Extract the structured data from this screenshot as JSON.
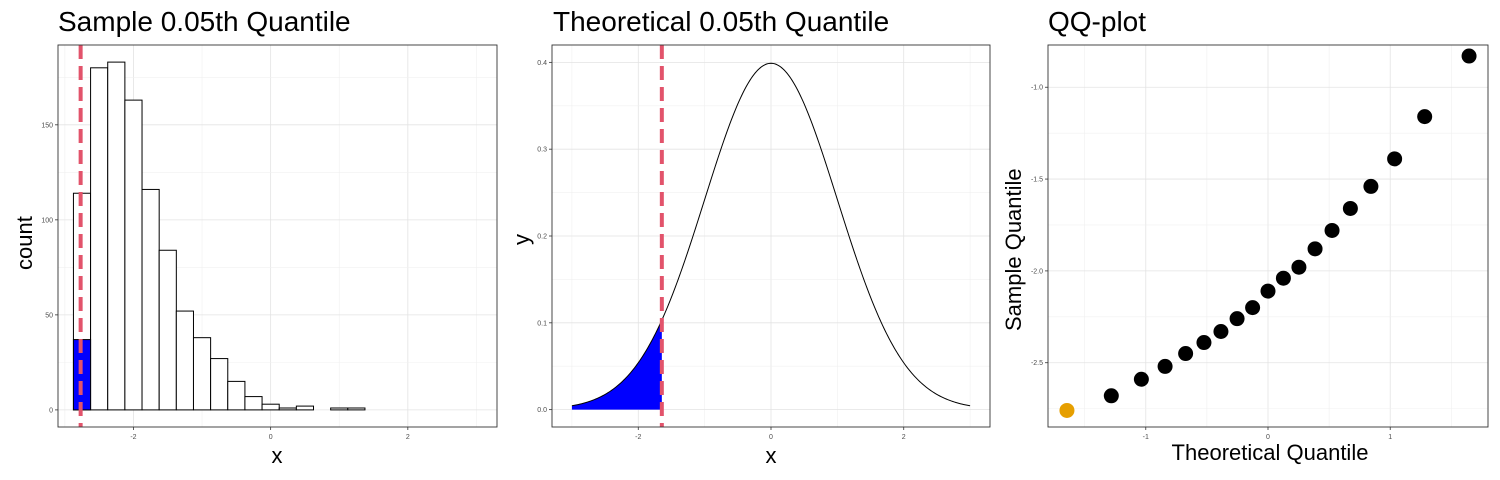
{
  "chart_data": [
    {
      "type": "bar",
      "title": "Sample 0.05th Quantile",
      "xlabel": "x",
      "ylabel": "count",
      "xlim": [
        -3.1,
        3.3
      ],
      "ylim": [
        -9,
        192
      ],
      "xticks": [
        -2,
        0,
        2
      ],
      "yticks": [
        0,
        50,
        100,
        150
      ],
      "bin_width": 0.25,
      "bins_start": [
        -2.875,
        -2.625,
        -2.375,
        -2.125,
        -1.875,
        -1.625,
        -1.375,
        -1.125,
        -0.875,
        -0.625,
        -0.375,
        -0.125,
        0.125,
        0.375,
        0.625,
        0.875,
        1.125,
        1.375,
        1.625,
        1.875,
        2.125,
        2.375,
        2.625
      ],
      "values": [
        114,
        180,
        183,
        163,
        116,
        84,
        52,
        38,
        27,
        15,
        7,
        3,
        1,
        2,
        0,
        1,
        1,
        0,
        0,
        0,
        0,
        0,
        0
      ],
      "highlight": {
        "bin_start": -2.875,
        "value": 37,
        "color": "#0000ff"
      },
      "vline": {
        "x": -2.77,
        "color": "#e2536b",
        "style": "dashed"
      },
      "grid": true
    },
    {
      "type": "area",
      "title": "Theoretical 0.05th Quantile",
      "xlabel": "x",
      "ylabel": "y",
      "xlim": [
        -3.3,
        3.3
      ],
      "ylim": [
        -0.02,
        0.42
      ],
      "xticks": [
        -2,
        0,
        2
      ],
      "yticks": [
        0.0,
        0.1,
        0.2,
        0.3,
        0.4
      ],
      "ytick_labels": [
        "0.0",
        "0.1",
        "0.2",
        "0.3",
        "0.4"
      ],
      "curve": "normal density",
      "x_range": [
        -3,
        3
      ],
      "shade_below": -1.645,
      "shade_color": "#0000ff",
      "vline": {
        "x": -1.645,
        "color": "#e2536b",
        "style": "dashed"
      },
      "grid": true
    },
    {
      "type": "scatter",
      "title": "QQ-plot",
      "xlabel": "Theoretical Quantile",
      "ylabel": "Sample Quantile",
      "xlim": [
        -1.8,
        1.8
      ],
      "ylim": [
        -2.85,
        -0.77
      ],
      "xticks": [
        -1,
        0,
        1
      ],
      "yticks": [
        -2.5,
        -2.0,
        -1.5,
        -1.0
      ],
      "ytick_labels": [
        "-2.5",
        "-2.0",
        "-1.5",
        "-1.0"
      ],
      "x": [
        -1.645,
        -1.282,
        -1.036,
        -0.842,
        -0.674,
        -0.524,
        -0.385,
        -0.253,
        -0.126,
        0.0,
        0.126,
        0.253,
        0.385,
        0.524,
        0.674,
        0.842,
        1.036,
        1.282,
        1.645
      ],
      "y": [
        -2.76,
        -2.68,
        -2.59,
        -2.52,
        -2.45,
        -2.39,
        -2.33,
        -2.26,
        -2.2,
        -2.11,
        -2.04,
        -1.98,
        -1.88,
        -1.78,
        -1.66,
        -1.54,
        -1.39,
        -1.16,
        -0.83
      ],
      "point_colors": [
        "#e69f00",
        "#000000",
        "#000000",
        "#000000",
        "#000000",
        "#000000",
        "#000000",
        "#000000",
        "#000000",
        "#000000",
        "#000000",
        "#000000",
        "#000000",
        "#000000",
        "#000000",
        "#000000",
        "#000000",
        "#000000",
        "#000000"
      ],
      "grid": true
    }
  ]
}
